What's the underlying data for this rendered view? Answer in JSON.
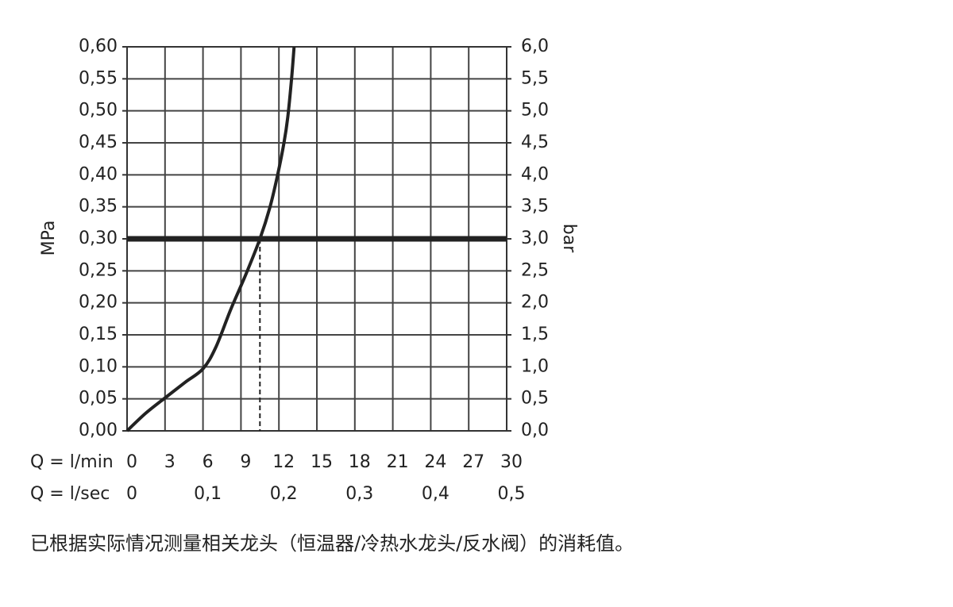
{
  "chart_data": {
    "type": "line",
    "y_label": "MPa",
    "y2_label": "bar",
    "x_label": "Q = l/min",
    "x2_label": "Q = l/sec",
    "caption": "已根据实际情况测量相关龙头（恒温器/冷热水龙头/反水阀）的消耗值。",
    "series": [
      {
        "color": "#222222",
        "x": [
          0,
          1.5,
          3.1,
          4.6,
          6.0,
          7.0,
          8.2,
          9.4,
          10.5,
          11.3,
          11.9,
          12.4,
          12.7,
          13.0,
          13.2
        ],
        "values": [
          0,
          0.028,
          0.053,
          0.076,
          0.097,
          0.13,
          0.19,
          0.245,
          0.3,
          0.35,
          0.4,
          0.45,
          0.49,
          0.55,
          0.6
        ]
      }
    ],
    "xlim": [
      0,
      30
    ],
    "xticks": [
      0,
      3,
      6,
      9,
      12,
      15,
      18,
      21,
      24,
      27,
      30
    ],
    "x2lim": [
      0,
      0.5
    ],
    "x2ticks": [
      0,
      {
        "value": 0.1,
        "label": "0,1"
      },
      {
        "value": 0.2,
        "label": "0,2"
      },
      {
        "value": 0.3,
        "label": "0,3"
      },
      {
        "value": 0.4,
        "label": "0,4"
      },
      {
        "value": 0.5,
        "label": "0,5"
      }
    ],
    "ylim": [
      0,
      0.6
    ],
    "yticks": [
      {
        "value": 0,
        "label": "0,00"
      },
      {
        "value": 0.05,
        "label": "0,05"
      },
      {
        "value": 0.1,
        "label": "0,10"
      },
      {
        "value": 0.15,
        "label": "0,15"
      },
      {
        "value": 0.2,
        "label": "0,20"
      },
      {
        "value": 0.25,
        "label": "0,25"
      },
      {
        "value": 0.3,
        "label": "0,30"
      },
      {
        "value": 0.35,
        "label": "0,35"
      },
      {
        "value": 0.4,
        "label": "0,40"
      },
      {
        "value": 0.45,
        "label": "0,45"
      },
      {
        "value": 0.5,
        "label": "0,50"
      },
      {
        "value": 0.55,
        "label": "0,55"
      },
      {
        "value": 0.6,
        "label": "0,60"
      }
    ],
    "y2lim": [
      0,
      6
    ],
    "y2ticks": [
      {
        "value": 0,
        "label": "0,0"
      },
      {
        "value": 0.5,
        "label": "0,5"
      },
      {
        "value": 1,
        "label": "1,0"
      },
      {
        "value": 1.5,
        "label": "1,5"
      },
      {
        "value": 2,
        "label": "2,0"
      },
      {
        "value": 2.5,
        "label": "2,5"
      },
      {
        "value": 3,
        "label": "3,0"
      },
      {
        "value": 3.5,
        "label": "3,5"
      },
      {
        "value": 4,
        "label": "4,0"
      },
      {
        "value": 4.5,
        "label": "4,5"
      },
      {
        "value": 5,
        "label": "5,0"
      },
      {
        "value": 5.5,
        "label": "5,5"
      },
      {
        "value": 6,
        "label": "6,0"
      }
    ],
    "reference_y": 0.3,
    "reference_x": 10.5,
    "grid": true
  }
}
